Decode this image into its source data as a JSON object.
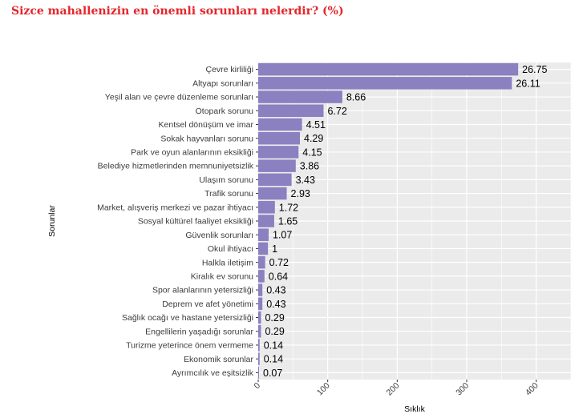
{
  "title": "Sizce mahallenizin en önemli sorunları nelerdir? (%)",
  "colors": {
    "bar": "#8b80c0",
    "panel": "#ebebeb",
    "grid": "#ffffff",
    "title": "#e3262b",
    "text": "#000000",
    "tick_text": "#3b3b3b"
  },
  "chart_data": {
    "type": "bar",
    "orientation": "horizontal",
    "xlabel": "Sıklık",
    "ylabel": "Sorunlar",
    "xlim": [
      0,
      450
    ],
    "xticks": [
      "0",
      "100",
      "200",
      "300",
      "400"
    ],
    "grid": true,
    "categories": [
      "Çevre kirliliği",
      "Altyapı sorunları",
      "Yeşil alan ve çevre düzenleme sorunları",
      "Otopark sorunu",
      "Kentsel dönüşüm ve imar",
      "Sokak hayvanları sorunu",
      "Park ve oyun alanlarının eksikliği",
      "Belediye hizmetlerinden memnuniyetsizlik",
      "Ulaşım sorunu",
      "Trafik sorunu",
      "Market, alışveriş merkezi ve pazar ihtiyacı",
      "Sosyal kültürel faaliyet eksikliği",
      "Güvenlik sorunları",
      "Okul ihtiyacı",
      "Halkla iletişim",
      "Kiralık ev sorunu",
      "Spor alanlarının yetersizliği",
      "Deprem ve afet yönetimi",
      "Sağlık ocağı ve hastane yetersizliği",
      "Engellilerin yaşadığı sorunlar",
      "Turizme yeterince önem vermeme",
      "Ekonomik sorunlar",
      "Ayrımcılık ve eşitsizlik"
    ],
    "values": [
      374,
      365,
      121,
      94,
      63,
      60,
      58,
      54,
      48,
      41,
      24,
      23,
      15,
      14,
      10,
      9,
      6,
      6,
      4,
      4,
      2,
      2,
      1
    ],
    "labels": [
      "26.75",
      "26.11",
      "8.66",
      "6.72",
      "4.51",
      "4.29",
      "4.15",
      "3.86",
      "3.43",
      "2.93",
      "1.72",
      "1.65",
      "1.07",
      "1",
      "0.72",
      "0.64",
      "0.43",
      "0.43",
      "0.29",
      "0.29",
      "0.14",
      "0.14",
      "0.07"
    ]
  }
}
